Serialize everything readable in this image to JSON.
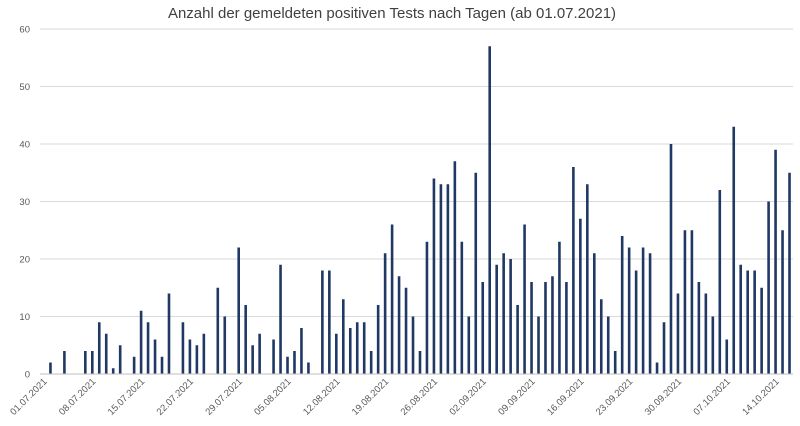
{
  "chart_data": {
    "type": "bar",
    "title": "Anzahl der gemeldeten positiven Tests nach Tagen (ab 01.07.2021)",
    "xlabel": "",
    "ylabel": "",
    "ylim": [
      0,
      60
    ],
    "yticks": [
      0,
      10,
      20,
      30,
      40,
      50,
      60
    ],
    "grid": true,
    "bar_color": "#1f3864",
    "x_tick_labels": [
      "01.07.2021",
      "08.07.2021",
      "15.07.2021",
      "22.07.2021",
      "29.07.2021",
      "05.08.2021",
      "12.08.2021",
      "19.08.2021",
      "26.08.2021",
      "02.09.2021",
      "09.09.2021",
      "16.09.2021",
      "23.09.2021",
      "30.09.2021",
      "07.10.2021",
      "14.10.2021"
    ],
    "start_date": "01.07.2021",
    "values": [
      0,
      2,
      0,
      4,
      0,
      0,
      4,
      4,
      9,
      7,
      1,
      5,
      0,
      3,
      11,
      9,
      6,
      3,
      14,
      0,
      9,
      6,
      5,
      7,
      0,
      15,
      10,
      0,
      22,
      12,
      5,
      7,
      0,
      6,
      19,
      3,
      4,
      8,
      2,
      0,
      18,
      18,
      7,
      13,
      8,
      9,
      9,
      4,
      12,
      21,
      26,
      17,
      15,
      10,
      4,
      23,
      34,
      33,
      33,
      37,
      23,
      10,
      35,
      16,
      57,
      19,
      21,
      20,
      12,
      26,
      16,
      10,
      16,
      17,
      23,
      16,
      36,
      27,
      33,
      21,
      13,
      10,
      4,
      24,
      22,
      18,
      22,
      21,
      2,
      9,
      40,
      14,
      25,
      25,
      16,
      14,
      10,
      32,
      6,
      43,
      19,
      18,
      18,
      15,
      30,
      39,
      25,
      35
    ]
  }
}
